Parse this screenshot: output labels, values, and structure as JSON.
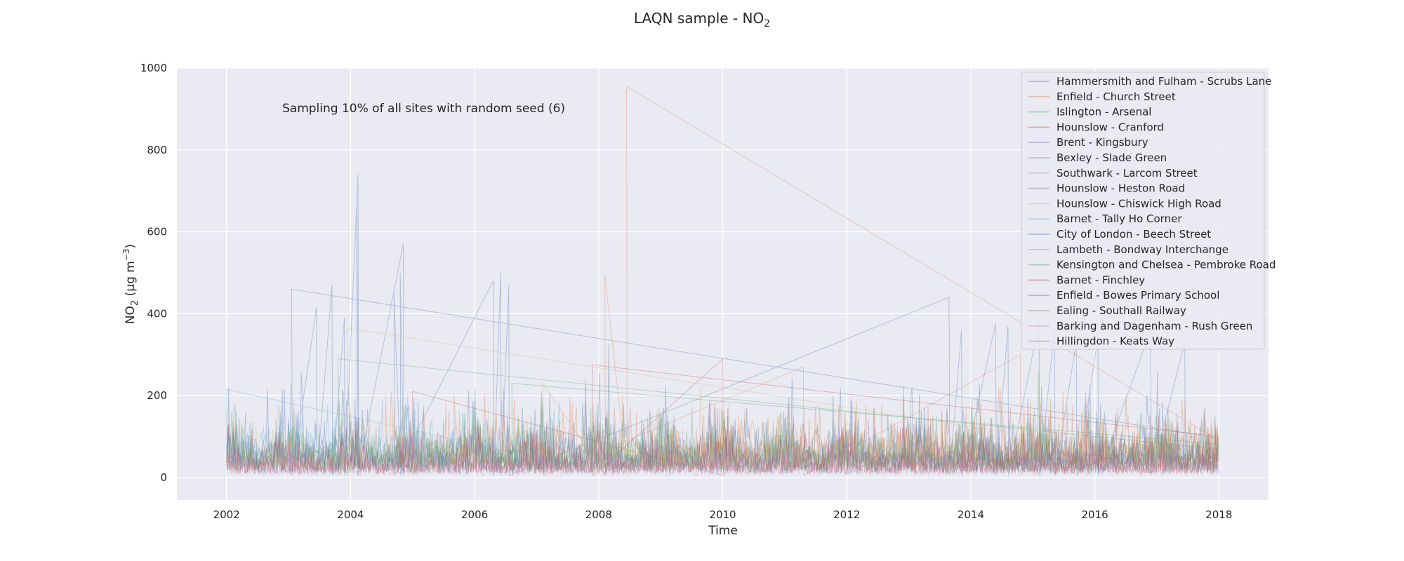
{
  "chart_data": {
    "type": "line",
    "title": "LAQN sample - NO",
    "title_subscript": "2",
    "annotation": "Sampling 10% of all sites with random seed (6)",
    "xlabel": "Time",
    "ylabel": {
      "prefix": "NO",
      "sub": "2",
      "unit": " (μg m",
      "sup": "−3",
      "close": ")"
    },
    "xlim": [
      2001.2,
      2018.8
    ],
    "ylim": [
      -55,
      1000
    ],
    "x_ticks": [
      2002,
      2004,
      2006,
      2008,
      2010,
      2012,
      2014,
      2016,
      2018
    ],
    "x_tick_labels": [
      "2002",
      "2004",
      "2006",
      "2008",
      "2010",
      "2012",
      "2014",
      "2016",
      "2018"
    ],
    "y_ticks": [
      0,
      200,
      400,
      600,
      800,
      1000
    ],
    "y_tick_labels": [
      "0",
      "200",
      "400",
      "600",
      "800",
      "1000"
    ],
    "grid": true,
    "legend_position": "top-right",
    "series": [
      {
        "name": "Hammersmith and Fulham - Scrubs Lane",
        "color": "#4c72b0",
        "range": [
          2002.0,
          2018.0
        ],
        "base": 75,
        "amp": 165,
        "peaks": [
          [
            2003.05,
            460
          ],
          [
            2003.45,
            415
          ],
          [
            2003.7,
            470
          ],
          [
            2003.9,
            390
          ],
          [
            2004.12,
            740
          ],
          [
            2004.1,
            665
          ],
          [
            2004.85,
            570
          ],
          [
            2004.8,
            500
          ],
          [
            2004.7,
            450
          ],
          [
            2006.3,
            480
          ],
          [
            2006.42,
            500
          ],
          [
            2006.55,
            470
          ],
          [
            2013.65,
            440
          ],
          [
            2013.85,
            360
          ],
          [
            2014.4,
            375
          ],
          [
            2014.6,
            370
          ],
          [
            2015.1,
            380
          ],
          [
            2015.35,
            365
          ],
          [
            2015.7,
            330
          ],
          [
            2016.05,
            340
          ],
          [
            2016.9,
            360
          ],
          [
            2017.45,
            330
          ]
        ]
      },
      {
        "name": "Enfield - Church Street",
        "color": "#dd8452",
        "range": [
          2004.5,
          2018.0
        ],
        "base": 70,
        "amp": 150,
        "peaks": [
          [
            2008.45,
            955
          ],
          [
            2008.1,
            495
          ],
          [
            2007.1,
            230
          ],
          [
            2011.3,
            270
          ],
          [
            2014.8,
            300
          ]
        ]
      },
      {
        "name": "Islington - Arsenal",
        "color": "#55a868",
        "range": [
          2002.0,
          2018.0
        ],
        "base": 55,
        "amp": 130,
        "peaks": [
          [
            2003.8,
            290
          ]
        ]
      },
      {
        "name": "Hounslow - Cranford",
        "color": "#c44e52",
        "range": [
          2002.0,
          2018.0
        ],
        "base": 40,
        "amp": 120,
        "peaks": [
          [
            2007.9,
            275
          ],
          [
            2010.0,
            290
          ],
          [
            2005.0,
            210
          ]
        ]
      },
      {
        "name": "Brent - Kingsbury",
        "color": "#8172b3",
        "range": [
          2002.0,
          2012.5
        ],
        "base": 35,
        "amp": 100,
        "peaks": []
      },
      {
        "name": "Bexley - Slade Green",
        "color": "#937860",
        "range": [
          2002.0,
          2018.0
        ],
        "base": 35,
        "amp": 100,
        "peaks": []
      },
      {
        "name": "Southwark - Larcom Street",
        "color": "#da8bc3",
        "range": [
          2002.0,
          2018.0
        ],
        "base": 30,
        "amp": 80,
        "peaks": []
      },
      {
        "name": "Hounslow - Heston Road",
        "color": "#8c8c8c",
        "range": [
          2002.0,
          2018.0
        ],
        "base": 45,
        "amp": 110,
        "peaks": []
      },
      {
        "name": "Hounslow - Chiswick High Road",
        "color": "#ccb974",
        "range": [
          2002.0,
          2018.0
        ],
        "base": 60,
        "amp": 130,
        "peaks": [
          [
            2003.95,
            365
          ]
        ]
      },
      {
        "name": "Barnet - Tally Ho Corner",
        "color": "#64b5cd",
        "range": [
          2002.0,
          2007.5
        ],
        "base": 85,
        "amp": 120,
        "peaks": [
          [
            2002.0,
            215
          ]
        ]
      },
      {
        "name": "City of London - Beech Street",
        "color": "#4c72b0",
        "range": [
          2002.0,
          2018.0
        ],
        "base": 50,
        "amp": 110,
        "peaks": []
      },
      {
        "name": "Lambeth - Bondway Interchange",
        "color": "#dd8452",
        "range": [
          2009.0,
          2018.0
        ],
        "base": 60,
        "amp": 140,
        "peaks": []
      },
      {
        "name": "Kensington and Chelsea - Pembroke Road",
        "color": "#55a868",
        "range": [
          2002.0,
          2018.0
        ],
        "base": 45,
        "amp": 110,
        "peaks": [
          [
            2006.6,
            230
          ]
        ]
      },
      {
        "name": "Barnet - Finchley",
        "color": "#c44e52",
        "range": [
          2002.0,
          2018.0
        ],
        "base": 30,
        "amp": 100,
        "peaks": []
      },
      {
        "name": "Enfield - Bowes Primary School",
        "color": "#8172b3",
        "range": [
          2012.3,
          2018.0
        ],
        "base": 40,
        "amp": 100,
        "peaks": []
      },
      {
        "name": "Ealing - Southall Railway",
        "color": "#937860",
        "range": [
          2012.3,
          2018.0
        ],
        "base": 45,
        "amp": 110,
        "peaks": []
      },
      {
        "name": "Barking and Dagenham - Rush Green",
        "color": "#da8bc3",
        "range": [
          2002.0,
          2018.0
        ],
        "base": 20,
        "amp": 70,
        "peaks": []
      },
      {
        "name": "Hillingdon - Keats Way",
        "color": "#8c8c8c",
        "range": [
          2002.0,
          2018.0
        ],
        "base": 30,
        "amp": 90,
        "peaks": []
      }
    ]
  },
  "colors": {
    "plot_background": "#eaeaf2",
    "grid": "#ffffff",
    "legend_background": "#eaeaf2",
    "legend_border": "#cccccc",
    "text": "#262626"
  }
}
